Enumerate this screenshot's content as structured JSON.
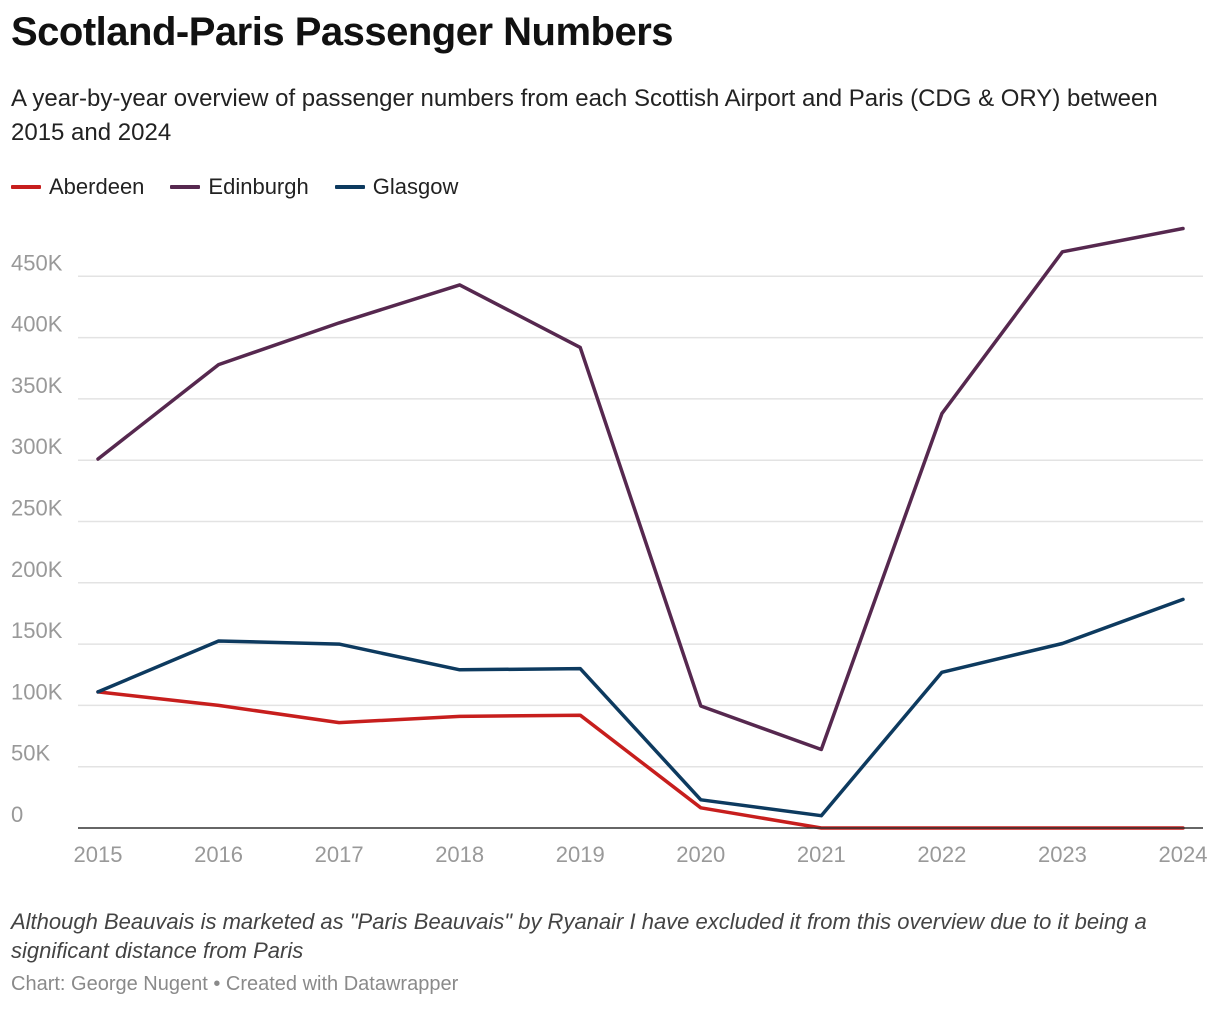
{
  "header": {
    "title": "Scotland-Paris Passenger Numbers",
    "subtitle": "A year-by-year overview of passenger numbers from each Scottish Airport and Paris (CDG & ORY) between 2015 and 2024"
  },
  "footer": {
    "note": "Although Beauvais is marketed as \"Paris Beauvais\" by Ryanair I have excluded it from this overview due to it being a significant distance from Paris",
    "credit": "Chart: George Nugent • Created with Datawrapper"
  },
  "chart_data": {
    "type": "line",
    "title": "Scotland-Paris Passenger Numbers",
    "xlabel": "",
    "ylabel": "",
    "x": [
      "2015",
      "2016",
      "2017",
      "2018",
      "2019",
      "2020",
      "2021",
      "2022",
      "2023",
      "2024"
    ],
    "ylim": [
      0,
      490000
    ],
    "yticks": [
      {
        "value": 0,
        "label": "0"
      },
      {
        "value": 50000,
        "label": "50K"
      },
      {
        "value": 100000,
        "label": "100K"
      },
      {
        "value": 150000,
        "label": "150K"
      },
      {
        "value": 200000,
        "label": "200K"
      },
      {
        "value": 250000,
        "label": "250K"
      },
      {
        "value": 300000,
        "label": "300K"
      },
      {
        "value": 350000,
        "label": "350K"
      },
      {
        "value": 400000,
        "label": "400K"
      },
      {
        "value": 450000,
        "label": "450K"
      }
    ],
    "grid": true,
    "legend": "top-left",
    "series": [
      {
        "name": "Aberdeen",
        "color": "#c71e1d",
        "values": [
          111000,
          100000,
          86000,
          91000,
          92000,
          16500,
          0,
          0,
          0,
          0
        ]
      },
      {
        "name": "Edinburgh",
        "color": "#56284f",
        "values": [
          301000,
          378000,
          412000,
          443000,
          392000,
          99500,
          64000,
          338000,
          470000,
          489000
        ]
      },
      {
        "name": "Glasgow",
        "color": "#0d3a5f",
        "values": [
          111000,
          152500,
          150000,
          129000,
          130000,
          23000,
          10000,
          127000,
          150500,
          186500
        ]
      }
    ]
  }
}
